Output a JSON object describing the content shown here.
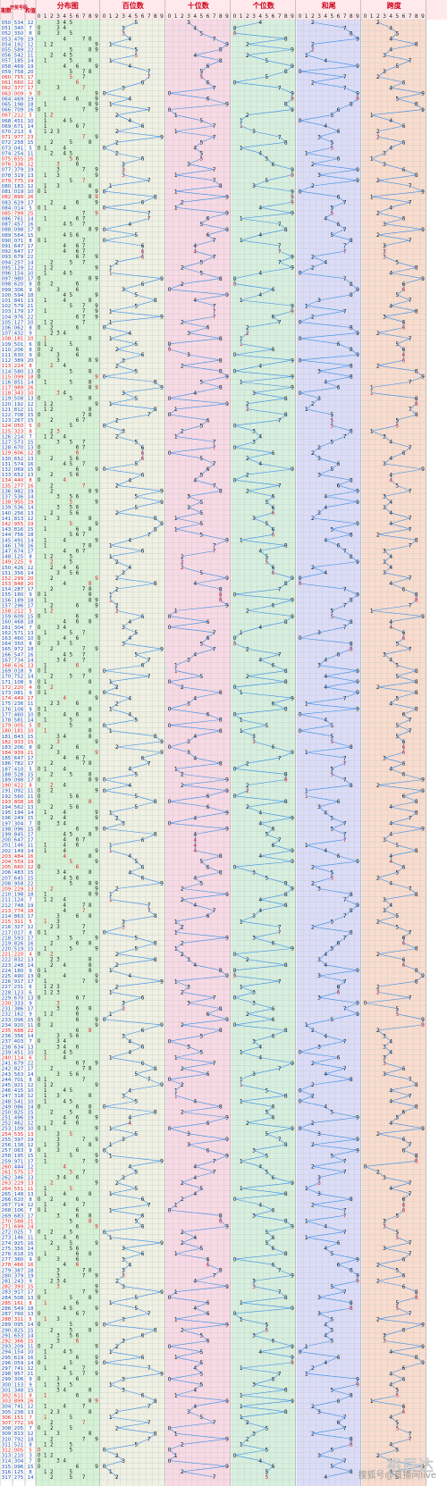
{
  "header": {
    "col_period": "期数",
    "col_draw": "开奖号码",
    "col_sum": "和值",
    "section_titles": [
      "分布图",
      "百位数",
      "十位数",
      "个位数",
      "和尾",
      "跨度"
    ],
    "digits": [
      "0",
      "1",
      "2",
      "3",
      "4",
      "5",
      "6",
      "7",
      "8",
      "9"
    ]
  },
  "watermark": {
    "logo": "裕辰达",
    "credit": "搜狐号@直播间live"
  },
  "colors": {
    "header_bg": "#ffe9ec",
    "header_text": "#d0021b",
    "dist_bg": "#d6f2d6",
    "hundreds_bg": "#f0f0e4",
    "tens_bg": "#f9d9e6",
    "units_bg": "#d8efe0",
    "tail_bg": "#dcdcf9",
    "span_bg": "#fadccf",
    "line": "#3a8ee6",
    "hot": "#e02020",
    "special": "#1f3fd6"
  },
  "chart_data": {
    "type": "table",
    "first_period": 50,
    "draws": [
      [
        5,
        3,
        4
      ],
      [
        3,
        4,
        0
      ],
      [
        3,
        5,
        0
      ],
      [
        4,
        7,
        8
      ],
      [
        1,
        9,
        2
      ],
      [
        5,
        8,
        9
      ],
      [
        5,
        4,
        2
      ],
      [
        1,
        8,
        5
      ],
      [
        4,
        6,
        9
      ],
      [
        7,
        5,
        8
      ],
      [
        7,
        5,
        5
      ],
      [
        6,
        6,
        0
      ],
      [
        3,
        7,
        7
      ],
      [
        0,
        0,
        9
      ],
      [
        4,
        6,
        9
      ],
      [
        1,
        9,
        8
      ],
      [
        7,
        0,
        9
      ],
      [
        2,
        1,
        2
      ],
      [
        4,
        5,
        1
      ],
      [
        6,
        7,
        1
      ],
      [
        2,
        1,
        3
      ],
      [
        9,
        7,
        7
      ],
      [
        2,
        5,
        8
      ],
      [
        0,
        4,
        1
      ],
      [
        2,
        5,
        4
      ],
      [
        6,
        5,
        5
      ],
      [
        3,
        3,
        6
      ],
      [
        3,
        7,
        9
      ],
      [
        3,
        1,
        9
      ],
      [
        7,
        7,
        5
      ],
      [
        1,
        8,
        3
      ],
      [
        0,
        1,
        9
      ],
      [
        8,
        9,
        9
      ],
      [
        6,
        2,
        9
      ],
      [
        0,
        1,
        4
      ],
      [
        7,
        9,
        9
      ],
      [
        7,
        6,
        1
      ],
      [
        4,
        5,
        7
      ],
      [
        0,
        9,
        8
      ],
      [
        5,
        6,
        4
      ],
      [
        0,
        7,
        1
      ],
      [
        6,
        4,
        7
      ],
      [
        6,
        4,
        7
      ],
      [
        6,
        7,
        9
      ],
      [
        2,
        5,
        7
      ],
      [
        1,
        2,
        9
      ],
      [
        1,
        5,
        4
      ],
      [
        9,
        8,
        0
      ],
      [
        6,
        2,
        0
      ],
      [
        3,
        0,
        6
      ],
      [
        5,
        9,
        4
      ],
      [
        8,
        4,
        1
      ],
      [
        5,
        7,
        9
      ],
      [
        1,
        7,
        9
      ],
      [
        9,
        7,
        6
      ],
      [
        1,
        2,
        7
      ],
      [
        0,
        6,
        2
      ],
      [
        4,
        3,
        2
      ],
      [
        1,
        8,
        1
      ],
      [
        5,
        0,
        1
      ],
      [
        2,
        0,
        6
      ],
      [
        6,
        3,
        0
      ],
      [
        3,
        8,
        9
      ],
      [
        2,
        2,
        4
      ],
      [
        5,
        8,
        0
      ],
      [
        0,
        9,
        9
      ],
      [
        8,
        5,
        1
      ],
      [
        9,
        8,
        9
      ],
      [
        3,
        4,
        3
      ],
      [
        5,
        0,
        8
      ],
      [
        1,
        9,
        2
      ],
      [
        8,
        1,
        2
      ],
      [
        7,
        0,
        8
      ],
      [
        2,
        6,
        7
      ],
      [
        0,
        5,
        0
      ],
      [
        3,
        2,
        3
      ],
      [
        2,
        1,
        4
      ],
      [
        5,
        7,
        3
      ],
      [
        6,
        7,
        0
      ],
      [
        6,
        0,
        6
      ],
      [
        6,
        5,
        2
      ],
      [
        5,
        7,
        4
      ],
      [
        0,
        6,
        9
      ],
      [
        6,
        5,
        2
      ],
      [
        4,
        4,
        0
      ],
      [
        2,
        7,
        7
      ],
      [
        9,
        8,
        2
      ],
      [
        5,
        3,
        6
      ],
      [
        9,
        5,
        5
      ],
      [
        5,
        3,
        6
      ],
      [
        2,
        5,
        6
      ],
      [
        8,
        1,
        3
      ],
      [
        9,
        5,
        5
      ],
      [
        8,
        1,
        6
      ],
      [
        7,
        5,
        6
      ],
      [
        4,
        9,
        1
      ],
      [
        1,
        7,
        8
      ],
      [
        6,
        7,
        4
      ],
      [
        1,
        2,
        5
      ],
      [
        2,
        2,
        5
      ],
      [
        4,
        2,
        6
      ],
      [
        3,
        5,
        6
      ],
      [
        2,
        9,
        9
      ],
      [
        8,
        4,
        8
      ],
      [
        2,
        8,
        7
      ],
      [
        1,
        8,
        0
      ],
      [
        1,
        8,
        9
      ],
      [
        2,
        9,
        6
      ],
      [
        2,
        1,
        2
      ],
      [
        6,
        0,
        9
      ],
      [
        4,
        6,
        8
      ],
      [
        3,
        0,
        4
      ],
      [
        5,
        7,
        1
      ],
      [
        4,
        6,
        0
      ],
      [
        3,
        5,
        0
      ],
      [
        9,
        7,
        2
      ],
      [
        5,
        4,
        7
      ],
      [
        7,
        3,
        4
      ],
      [
        6,
        1,
        6
      ],
      [
        0,
        1,
        8
      ],
      [
        7,
        5,
        2
      ],
      [
        1,
        0,
        8
      ],
      [
        2,
        2,
        0
      ],
      [
        0,
        8,
        1
      ],
      [
        4,
        4,
        9
      ],
      [
        2,
        3,
        6
      ],
      [
        1,
        0,
        8
      ],
      [
        4,
        6,
        0
      ],
      [
        5,
        8,
        1
      ],
      [
        0,
        0,
        5
      ],
      [
        1,
        8,
        1
      ],
      [
        8,
        4,
        3
      ],
      [
        9,
        3,
        3
      ],
      [
        2,
        0,
        6
      ],
      [
        9,
        3,
        9
      ],
      [
        6,
        4,
        7
      ],
      [
        7,
        8,
        2
      ],
      [
        4,
        1,
        0
      ],
      [
        5,
        2,
        8
      ],
      [
        0,
        9,
        8
      ],
      [
        4,
        2,
        2
      ],
      [
        0,
        9,
        2
      ],
      [
        5,
        6,
        0
      ],
      [
        8,
        0,
        8
      ],
      [
        5,
        6,
        2
      ],
      [
        1,
        9,
        4
      ],
      [
        2,
        4,
        9
      ],
      [
        3,
        0,
        4
      ],
      [
        0,
        9,
        6
      ],
      [
        8,
        4,
        5
      ],
      [
        6,
        4,
        7
      ],
      [
        1,
        4,
        6
      ],
      [
        1,
        4,
        9
      ],
      [
        4,
        8,
        4
      ],
      [
        5,
        5,
        9
      ],
      [
        6,
        6,
        0
      ],
      [
        4,
        8,
        3
      ],
      [
        6,
        4,
        5
      ],
      [
        9,
        5,
        8
      ],
      [
        2,
        2,
        9
      ],
      [
        1,
        9,
        8
      ],
      [
        1,
        2,
        4
      ],
      [
        7,
        4,
        8
      ],
      [
        7,
        7,
        4
      ],
      [
        8,
        6,
        3
      ],
      [
        3,
        1,
        1
      ],
      [
        3,
        2,
        7
      ],
      [
        0,
        1,
        7
      ],
      [
        5,
        9,
        3
      ],
      [
        8,
        2,
        6
      ],
      [
        5,
        1,
        9
      ],
      [
        2,
        2,
        0
      ],
      [
        8,
        3,
        2
      ],
      [
        2,
        4,
        8
      ],
      [
        1,
        8,
        0
      ],
      [
        4,
        9,
        0
      ],
      [
        9,
        1,
        7
      ],
      [
        2,
        3,
        1
      ],
      [
        1,
        2,
        3
      ],
      [
        6,
        7,
        0
      ],
      [
        3,
        3,
        3
      ],
      [
        3,
        8,
        6
      ],
      [
        1,
        6,
        2
      ],
      [
        0,
        9,
        6
      ],
      [
        9,
        2,
        0
      ],
      [
        6,
        8,
        8
      ],
      [
        3,
        5,
        6
      ],
      [
        4,
        0,
        3
      ],
      [
        6,
        3,
        4
      ],
      [
        4,
        5,
        1
      ],
      [
        1,
        1,
        4
      ],
      [
        6,
        7,
        9
      ],
      [
        8,
        2,
        7
      ],
      [
        5,
        6,
        3
      ],
      [
        7,
        0,
        1
      ],
      [
        9,
        2,
        1
      ],
      [
        4,
        1,
        5
      ],
      [
        3,
        1,
        8
      ],
      [
        5,
        4,
        1
      ],
      [
        0,
        8,
        6
      ],
      [
        8,
        2,
        5
      ],
      [
        4,
        9,
        6
      ],
      [
        4,
        6,
        2
      ],
      [
        1,
        0,
        9
      ],
      [
        5,
        3,
        5
      ],
      [
        3,
        9,
        7
      ],
      [
        1,
        3,
        8
      ],
      [
        0,
        6,
        3
      ],
      [
        1,
        9,
        5
      ],
      [
        9,
        7,
        1
      ],
      [
        4,
        4,
        4
      ],
      [
        5,
        7,
        5
      ],
      [
        3,
        4,
        6
      ],
      [
        2,
        2,
        9
      ],
      [
        5,
        5,
        1
      ],
      [
        1,
        4,
        8
      ],
      [
        6,
        2,
        0
      ],
      [
        7,
        1,
        4
      ],
      [
        1,
        0,
        6
      ],
      [
        6,
        8,
        3
      ],
      [
        5,
        8,
        8
      ],
      [
        6,
        9,
        9
      ],
      [
        0,
        2,
        5
      ],
      [
        1,
        4,
        6
      ],
      [
        9,
        2,
        5
      ],
      [
        3,
        5,
        6
      ],
      [
        6,
        1,
        8
      ],
      [
        3,
        6,
        0
      ],
      [
        4,
        6,
        6
      ],
      [
        3,
        8,
        7
      ],
      [
        3,
        7,
        9
      ],
      [
        2,
        4,
        3
      ],
      [
        3,
        9,
        3
      ],
      [
        9,
        1,
        7
      ],
      [
        5,
        0,
        8
      ],
      [
        1,
        6,
        1
      ],
      [
        5,
        4,
        9
      ],
      [
        7,
        6,
        0
      ],
      [
        3,
        1,
        1
      ],
      [
        0,
        9,
        5
      ],
      [
        8,
        2,
        5
      ],
      [
        6,
        5,
        3
      ],
      [
        3,
        6,
        6
      ],
      [
        2,
        0,
        9
      ],
      [
        1,
        5,
        4
      ],
      [
        6,
        1,
        9
      ],
      [
        0,
        5,
        9
      ],
      [
        7,
        4,
        1
      ],
      [
        9,
        5,
        7
      ],
      [
        3,
        0,
        6
      ],
      [
        1,
        5,
        3
      ],
      [
        3,
        4,
        8
      ],
      [
        6,
        1,
        1
      ],
      [
        8,
        9,
        9
      ],
      [
        7,
        4,
        1
      ],
      [
        2,
        3,
        8
      ],
      [
        1,
        5,
        1
      ],
      [
        7,
        7,
        2
      ],
      [
        2,
        0,
        5
      ],
      [
        8,
        1,
        3
      ],
      [
        7,
        9,
        2
      ],
      [
        5,
        2,
        1
      ],
      [
        0,
        0,
        5
      ],
      [
        2,
        1,
        0
      ],
      [
        3,
        0,
        4
      ],
      [
        0,
        9,
        6
      ],
      [
        1,
        2,
        5
      ],
      [
        2,
        7,
        5
      ]
    ]
  }
}
